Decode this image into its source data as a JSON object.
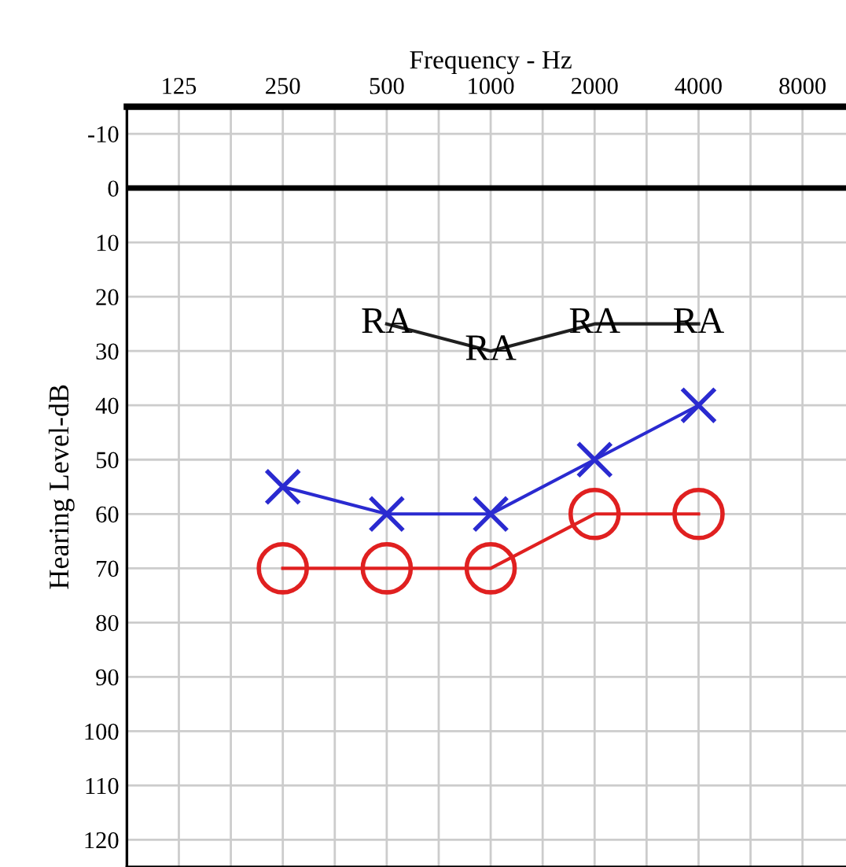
{
  "chart_data": {
    "type": "line",
    "xlabel": "Frequency - Hz",
    "ylabel": "Hearing Level-dB",
    "categories": [
      "125",
      "250",
      "500",
      "1000",
      "2000",
      "4000",
      "8000"
    ],
    "series": [
      {
        "color": "#e02020",
        "marker": "circle",
        "values": [
          null,
          70,
          70,
          70,
          60,
          60,
          null
        ]
      },
      {
        "color": "#2a2ad0",
        "marker": "cross",
        "values": [
          null,
          55,
          60,
          60,
          50,
          40,
          null
        ]
      },
      {
        "color": "#202020",
        "marker": "none",
        "values": [
          null,
          null,
          25,
          30,
          25,
          25,
          null
        ]
      }
    ],
    "annotations": [
      {
        "text": "RA",
        "x": "500",
        "y": 25
      },
      {
        "text": "RA",
        "x": "1000",
        "y": 30
      },
      {
        "text": "RA",
        "x": "2000",
        "y": 25
      },
      {
        "text": "RA",
        "x": "4000",
        "y": 25
      }
    ],
    "ylim": [
      125,
      -15
    ],
    "yticks": [
      -10,
      0,
      10,
      20,
      30,
      40,
      50,
      60,
      70,
      80,
      90,
      100,
      110,
      120
    ],
    "ref_lines": [
      {
        "axis": "y",
        "value": 0,
        "color": "#000000"
      }
    ],
    "grid": true,
    "line_style": "solid",
    "legend": false
  }
}
